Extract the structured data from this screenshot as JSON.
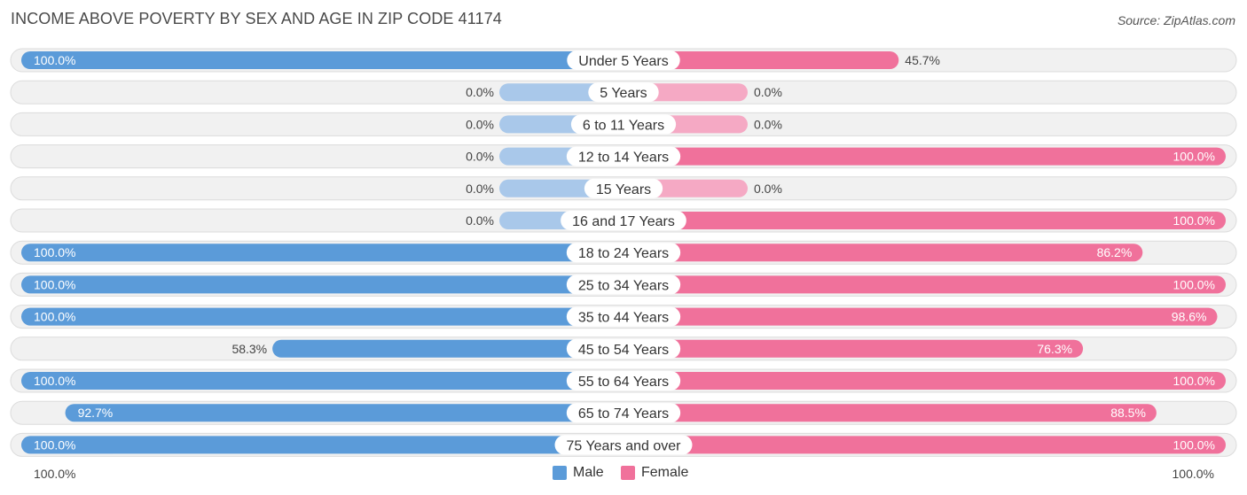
{
  "chart_data": {
    "type": "bar",
    "orientation": "horizontal-diverging",
    "title": "INCOME ABOVE POVERTY BY SEX AND AGE IN ZIP CODE 41174",
    "source": "Source: ZipAtlas.com",
    "categories": [
      "Under 5 Years",
      "5 Years",
      "6 to 11 Years",
      "12 to 14 Years",
      "15 Years",
      "16 and 17 Years",
      "18 to 24 Years",
      "25 to 34 Years",
      "35 to 44 Years",
      "45 to 54 Years",
      "55 to 64 Years",
      "65 to 74 Years",
      "75 Years and over"
    ],
    "series": [
      {
        "name": "Male",
        "color": "#5b9bd9",
        "values": [
          100.0,
          0.0,
          0.0,
          0.0,
          0.0,
          0.0,
          100.0,
          100.0,
          100.0,
          58.3,
          100.0,
          92.7,
          100.0
        ],
        "labels": [
          "100.0%",
          "0.0%",
          "0.0%",
          "0.0%",
          "0.0%",
          "0.0%",
          "100.0%",
          "100.0%",
          "100.0%",
          "58.3%",
          "100.0%",
          "92.7%",
          "100.0%"
        ]
      },
      {
        "name": "Female",
        "color": "#f0719b",
        "values": [
          45.7,
          0.0,
          0.0,
          100.0,
          0.0,
          100.0,
          86.2,
          100.0,
          98.6,
          76.3,
          100.0,
          88.5,
          100.0
        ],
        "labels": [
          "45.7%",
          "0.0%",
          "0.0%",
          "100.0%",
          "0.0%",
          "100.0%",
          "86.2%",
          "100.0%",
          "98.6%",
          "76.3%",
          "100.0%",
          "88.5%",
          "100.0%"
        ]
      }
    ],
    "axis_left_label": "100.0%",
    "axis_right_label": "100.0%",
    "xlim": [
      0,
      100
    ],
    "legend_position": "bottom-center",
    "colors": {
      "male": "#5b9bd9",
      "male_light": "#a9c8ea",
      "female": "#f0719b",
      "female_light": "#f5a9c4",
      "row_bg": "#f1f1f1",
      "row_border": "#dcdcdc"
    }
  }
}
